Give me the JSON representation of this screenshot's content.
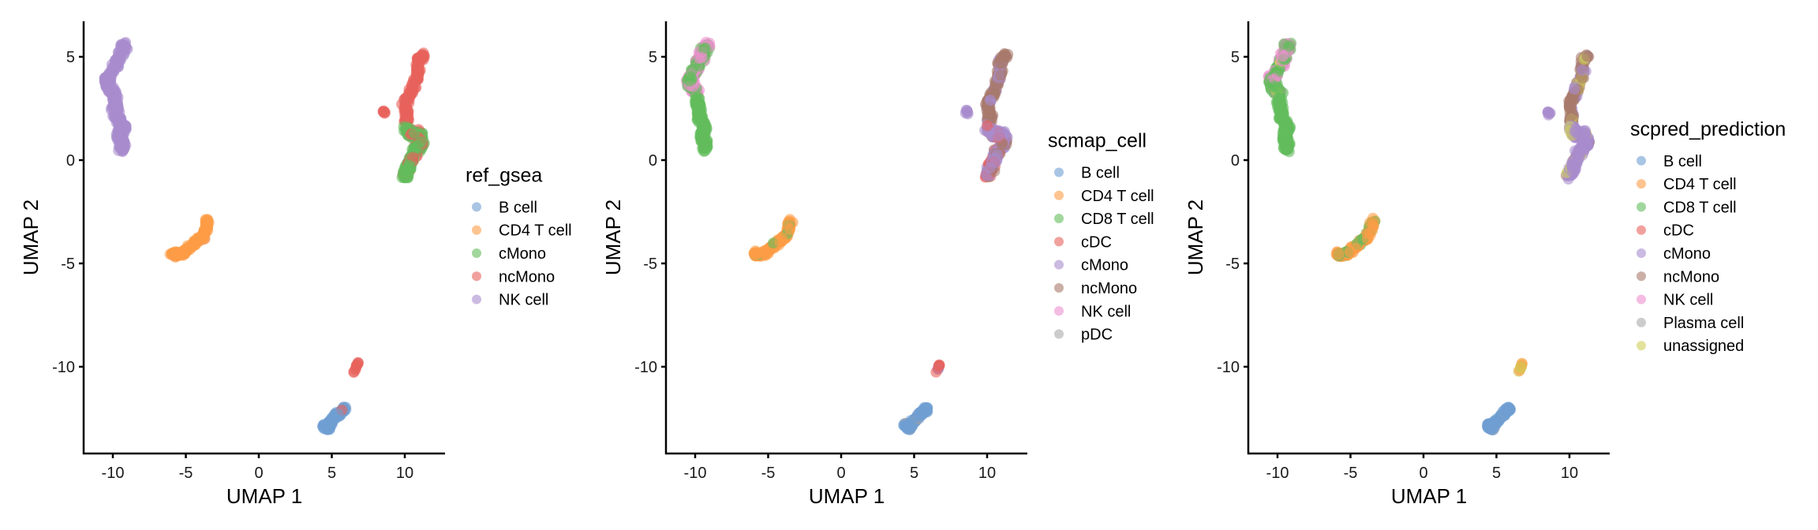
{
  "chart_data": [
    {
      "type": "scatter",
      "title": "",
      "xlabel": "UMAP 1",
      "ylabel": "UMAP 2",
      "xlim": [
        -12,
        12.8
      ],
      "ylim": [
        -14.2,
        6.7
      ],
      "xticks": [
        -10,
        -5,
        0,
        5,
        10
      ],
      "yticks": [
        -10,
        -5,
        0,
        5
      ],
      "grid": false,
      "legend": {
        "title": "ref_gsea",
        "placement": "right",
        "entries": [
          {
            "label": "B cell",
            "color": "#6f9fd2"
          },
          {
            "label": "CD4 T cell",
            "color": "#fd9d46"
          },
          {
            "label": "cMono",
            "color": "#62bd5c"
          },
          {
            "label": "ncMono",
            "color": "#e8625b"
          },
          {
            "label": "NK cell",
            "color": "#a98ccd"
          }
        ]
      },
      "clusters": [
        {
          "region": "top-left",
          "mix": {
            "NK cell": 1.0
          }
        },
        {
          "region": "cd4",
          "mix": {
            "CD4 T cell": 0.95,
            "NK cell": 0.05
          }
        },
        {
          "region": "mono-upper",
          "mix": {
            "ncMono": 1.0
          }
        },
        {
          "region": "mono-lower",
          "mix": {
            "cMono": 0.75,
            "ncMono": 0.25
          }
        },
        {
          "region": "mono-outlier",
          "mix": {
            "ncMono": 1.0
          }
        },
        {
          "region": "b",
          "mix": {
            "B cell": 0.97,
            "ncMono": 0.03
          }
        },
        {
          "region": "pair",
          "mix": {
            "ncMono": 1.0
          }
        }
      ]
    },
    {
      "type": "scatter",
      "title": "",
      "xlabel": "UMAP 1",
      "ylabel": "UMAP 2",
      "xlim": [
        -12,
        12.8
      ],
      "ylim": [
        -14.2,
        6.7
      ],
      "xticks": [
        -10,
        -5,
        0,
        5,
        10
      ],
      "yticks": [
        -10,
        -5,
        0,
        5
      ],
      "grid": false,
      "legend": {
        "title": "scmap_cell",
        "placement": "right",
        "entries": [
          {
            "label": "B cell",
            "color": "#6f9fd2"
          },
          {
            "label": "CD4 T cell",
            "color": "#fd9d46"
          },
          {
            "label": "CD8 T cell",
            "color": "#62bd5c"
          },
          {
            "label": "cDC",
            "color": "#e8625b"
          },
          {
            "label": "cMono",
            "color": "#a98ccd"
          },
          {
            "label": "ncMono",
            "color": "#a87a6c"
          },
          {
            "label": "NK cell",
            "color": "#ec90cf"
          },
          {
            "label": "pDC",
            "color": "#aaaaaa"
          }
        ]
      },
      "clusters": [
        {
          "region": "top-left-upper",
          "mix": {
            "NK cell": 0.55,
            "CD8 T cell": 0.45
          }
        },
        {
          "region": "top-left-lower",
          "mix": {
            "CD8 T cell": 1.0
          }
        },
        {
          "region": "cd4",
          "mix": {
            "CD4 T cell": 0.95,
            "CD8 T cell": 0.05
          }
        },
        {
          "region": "mono-upper",
          "mix": {
            "ncMono": 0.85,
            "cMono": 0.15
          }
        },
        {
          "region": "mono-lower",
          "mix": {
            "cMono": 0.7,
            "cDC": 0.15,
            "ncMono": 0.15
          }
        },
        {
          "region": "mono-outlier",
          "mix": {
            "cMono": 1.0
          }
        },
        {
          "region": "b",
          "mix": {
            "B cell": 0.97,
            "CD4 T cell": 0.03
          }
        },
        {
          "region": "pair",
          "mix": {
            "cMono": 0.5,
            "cDC": 0.5
          }
        }
      ]
    },
    {
      "type": "scatter",
      "title": "",
      "xlabel": "UMAP 1",
      "ylabel": "UMAP 2",
      "xlim": [
        -12,
        12.8
      ],
      "ylim": [
        -14.2,
        6.7
      ],
      "xticks": [
        -10,
        -5,
        0,
        5,
        10
      ],
      "yticks": [
        -10,
        -5,
        0,
        5
      ],
      "grid": false,
      "legend": {
        "title": "scpred_prediction",
        "placement": "right",
        "entries": [
          {
            "label": "B cell",
            "color": "#6f9fd2"
          },
          {
            "label": "CD4 T cell",
            "color": "#fd9d46"
          },
          {
            "label": "CD8 T cell",
            "color": "#62bd5c"
          },
          {
            "label": "cDC",
            "color": "#e8625b"
          },
          {
            "label": "cMono",
            "color": "#a98ccd"
          },
          {
            "label": "ncMono",
            "color": "#a87a6c"
          },
          {
            "label": "NK cell",
            "color": "#ec90cf"
          },
          {
            "label": "Plasma cell",
            "color": "#aaaaaa"
          },
          {
            "label": "unassigned",
            "color": "#cfcf5a"
          }
        ]
      },
      "clusters": [
        {
          "region": "top-left-upper",
          "mix": {
            "NK cell": 0.45,
            "CD8 T cell": 0.5,
            "unassigned": 0.05
          }
        },
        {
          "region": "top-left-lower",
          "mix": {
            "CD8 T cell": 1.0
          }
        },
        {
          "region": "cd4",
          "mix": {
            "CD4 T cell": 0.75,
            "CD8 T cell": 0.25
          }
        },
        {
          "region": "mono-upper",
          "mix": {
            "ncMono": 0.75,
            "unassigned": 0.15,
            "cMono": 0.1
          }
        },
        {
          "region": "mono-lower",
          "mix": {
            "cMono": 0.92,
            "ncMono": 0.04,
            "unassigned": 0.04
          }
        },
        {
          "region": "mono-outlier",
          "mix": {
            "cMono": 1.0
          }
        },
        {
          "region": "b",
          "mix": {
            "B cell": 0.97,
            "Plasma cell": 0.03
          }
        },
        {
          "region": "pair",
          "mix": {
            "CD4 T cell": 0.5,
            "unassigned": 0.5
          }
        }
      ]
    }
  ],
  "regions": {
    "top-left": [
      [
        -9.2,
        5.6
      ],
      [
        -9.5,
        5.1
      ],
      [
        -9.9,
        4.5
      ],
      [
        -10.3,
        4.0
      ],
      [
        -10.4,
        3.7
      ],
      [
        -9.9,
        3.2
      ],
      [
        -9.8,
        2.5
      ],
      [
        -9.7,
        2.0
      ],
      [
        -9.3,
        1.6
      ],
      [
        -9.6,
        1.1
      ],
      [
        -9.3,
        0.8
      ],
      [
        -9.4,
        0.5
      ]
    ],
    "top-left-upper": [
      [
        -9.2,
        5.6
      ],
      [
        -9.5,
        5.1
      ],
      [
        -9.9,
        4.5
      ],
      [
        -10.3,
        4.0
      ],
      [
        -10.4,
        3.7
      ],
      [
        -9.9,
        3.2
      ]
    ],
    "top-left-lower": [
      [
        -9.9,
        3.0
      ],
      [
        -9.8,
        2.5
      ],
      [
        -9.7,
        2.0
      ],
      [
        -9.3,
        1.6
      ],
      [
        -9.6,
        1.1
      ],
      [
        -9.3,
        0.8
      ],
      [
        -9.4,
        0.5
      ]
    ],
    "cd4": [
      [
        -3.5,
        -2.9
      ],
      [
        -3.6,
        -3.3
      ],
      [
        -3.8,
        -3.7
      ],
      [
        -4.2,
        -3.9
      ],
      [
        -4.7,
        -4.2
      ],
      [
        -5.2,
        -4.5
      ],
      [
        -5.7,
        -4.6
      ],
      [
        -5.9,
        -4.5
      ]
    ],
    "mono-upper": [
      [
        11.3,
        5.1
      ],
      [
        10.9,
        4.8
      ],
      [
        10.9,
        4.2
      ],
      [
        10.6,
        3.6
      ],
      [
        10.3,
        3.1
      ],
      [
        10.0,
        2.7
      ],
      [
        10.2,
        2.2
      ],
      [
        10.1,
        1.8
      ]
    ],
    "mono-lower": [
      [
        10.1,
        1.6
      ],
      [
        10.4,
        1.2
      ],
      [
        11.0,
        1.3
      ],
      [
        11.2,
        0.8
      ],
      [
        10.7,
        0.4
      ],
      [
        10.4,
        0.0
      ],
      [
        10.2,
        -0.4
      ],
      [
        10.0,
        -0.8
      ]
    ],
    "mono-outlier": [
      [
        8.6,
        2.3
      ]
    ],
    "b": [
      [
        4.4,
        -12.8
      ],
      [
        4.7,
        -13.0
      ],
      [
        4.9,
        -12.7
      ],
      [
        5.3,
        -12.4
      ],
      [
        5.6,
        -12.2
      ],
      [
        5.9,
        -12.0
      ]
    ],
    "pair": [
      [
        6.8,
        -9.8
      ],
      [
        6.5,
        -10.3
      ]
    ]
  }
}
